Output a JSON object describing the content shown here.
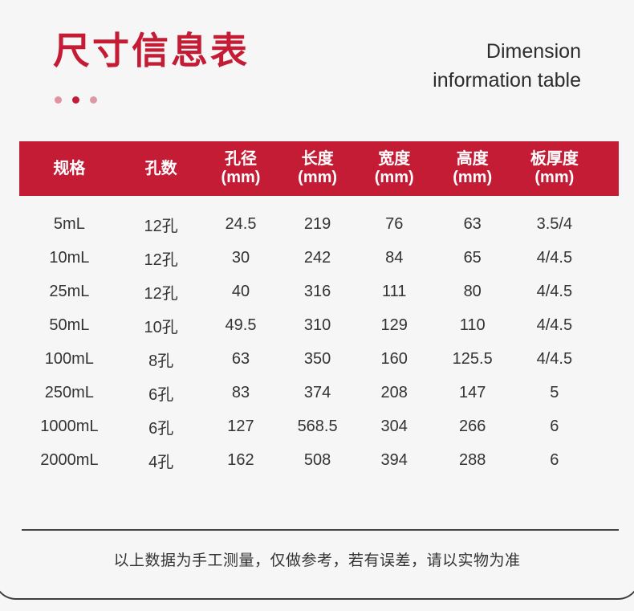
{
  "page": {
    "title_cn": "尺寸信息表",
    "title_en_line1": "Dimension",
    "title_en_line2": "information table"
  },
  "colors": {
    "accent_red": "#c41c35",
    "background": "#f6f6f7",
    "header_text": "#ffffff",
    "body_text": "#333333"
  },
  "table": {
    "headers": [
      {
        "line1": "规格",
        "line2": ""
      },
      {
        "line1": "孔数",
        "line2": ""
      },
      {
        "line1": "孔径",
        "line2": "(mm)"
      },
      {
        "line1": "长度",
        "line2": "(mm)"
      },
      {
        "line1": "宽度",
        "line2": "(mm)"
      },
      {
        "line1": "高度",
        "line2": "(mm)"
      },
      {
        "line1": "板厚度",
        "line2": "(mm)"
      }
    ],
    "rows": [
      {
        "cells": [
          "5mL",
          "12孔",
          "24.5",
          "219",
          "76",
          "63",
          "3.5/4"
        ]
      },
      {
        "cells": [
          "10mL",
          "12孔",
          "30",
          "242",
          "84",
          "65",
          "4/4.5"
        ]
      },
      {
        "cells": [
          "25mL",
          "12孔",
          "40",
          "316",
          "111",
          "80",
          "4/4.5"
        ]
      },
      {
        "cells": [
          "50mL",
          "10孔",
          "49.5",
          "310",
          "129",
          "110",
          "4/4.5"
        ]
      },
      {
        "cells": [
          "100mL",
          "8孔",
          "63",
          "350",
          "160",
          "125.5",
          "4/4.5"
        ]
      },
      {
        "cells": [
          "250mL",
          "6孔",
          "83",
          "374",
          "208",
          "147",
          "5"
        ]
      },
      {
        "cells": [
          "1000mL",
          "6孔",
          "127",
          "568.5",
          "304",
          "266",
          "6"
        ]
      },
      {
        "cells": [
          "2000mL",
          "4孔",
          "162",
          "508",
          "394",
          "288",
          "6"
        ]
      }
    ]
  },
  "footer": {
    "note": "以上数据为手工测量，仅做参考，若有误差，请以实物为准"
  }
}
